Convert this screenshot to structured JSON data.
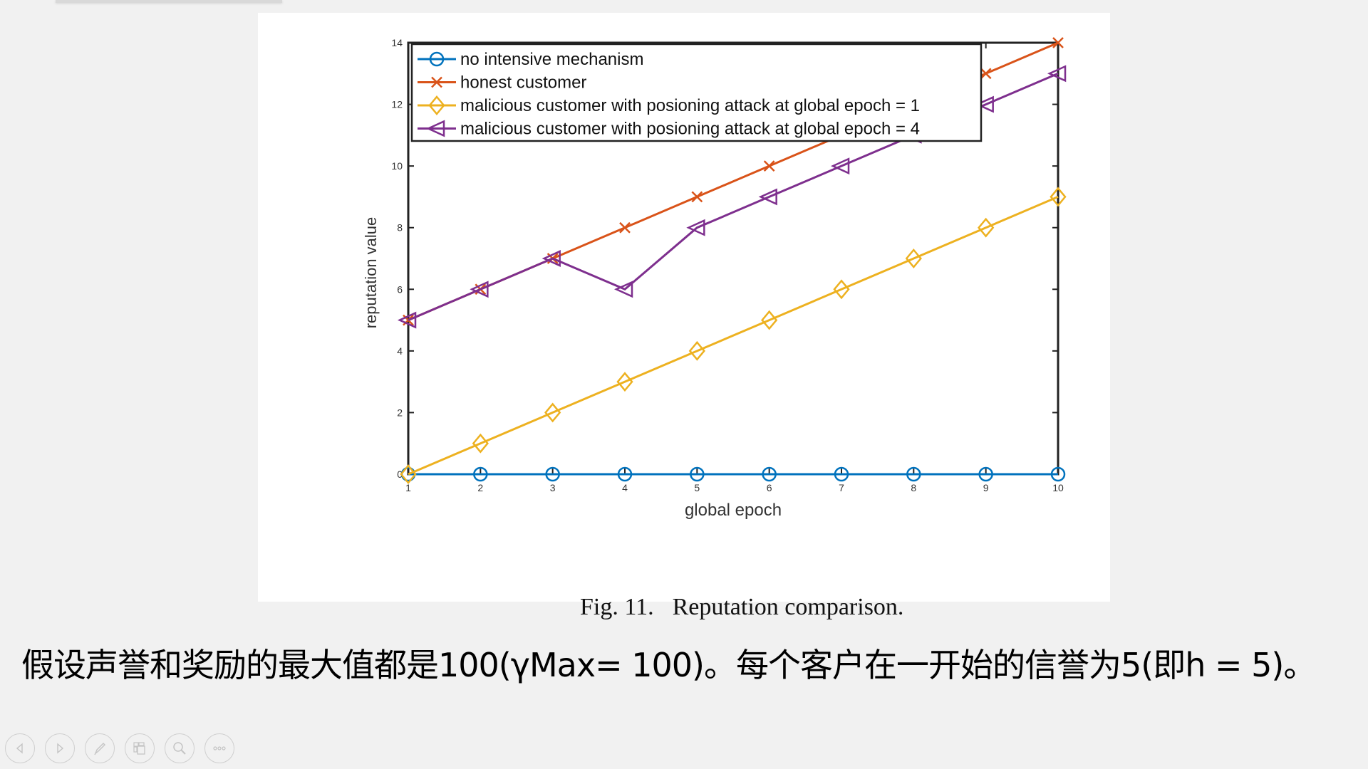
{
  "slide": {
    "body_text": "假设声誉和奖励的最大值都是100(γMax= 100)。每个客户在一开始的信誉为5(即h = 5)。"
  },
  "figure": {
    "caption_label": "Fig. 11.",
    "caption_text": "Reputation comparison."
  },
  "toolbar": {
    "buttons": [
      {
        "name": "previous-slide-button",
        "icon": "triangle-left-icon"
      },
      {
        "name": "next-slide-button",
        "icon": "triangle-right-icon"
      },
      {
        "name": "pen-tool-button",
        "icon": "pen-icon"
      },
      {
        "name": "slide-overview-button",
        "icon": "slides-grid-icon"
      },
      {
        "name": "zoom-button",
        "icon": "magnifier-icon"
      },
      {
        "name": "more-options-button",
        "icon": "ellipsis-icon"
      }
    ]
  },
  "chart_data": {
    "type": "line",
    "title": "",
    "xlabel": "global epoch",
    "ylabel": "reputation value",
    "x": [
      1,
      2,
      3,
      4,
      5,
      6,
      7,
      8,
      9,
      10
    ],
    "xlim": [
      1,
      10
    ],
    "ylim": [
      0,
      14
    ],
    "xticks": [
      "1",
      "2",
      "3",
      "4",
      "5",
      "6",
      "7",
      "8",
      "9",
      "10"
    ],
    "yticks": [
      "0",
      "2",
      "4",
      "6",
      "8",
      "10",
      "12",
      "14"
    ],
    "grid": false,
    "legend_position": "upper left (inside)",
    "series": [
      {
        "name": "no intensive mechanism",
        "color": "#0072BD",
        "marker": "circle",
        "values": [
          0,
          0,
          0,
          0,
          0,
          0,
          0,
          0,
          0,
          0
        ]
      },
      {
        "name": "honest customer",
        "color": "#D95319",
        "marker": "x",
        "values": [
          5,
          6,
          7,
          8,
          9,
          10,
          11,
          12,
          13,
          14
        ]
      },
      {
        "name": "malicious customer with posioning attack at global epoch = 1",
        "color": "#EDB120",
        "marker": "diamond",
        "values": [
          0,
          1,
          2,
          3,
          4,
          5,
          6,
          7,
          8,
          9
        ]
      },
      {
        "name": "malicious customer with posioning attack at global epoch = 4",
        "color": "#7E2F8E",
        "marker": "triangle-left",
        "values": [
          5,
          6,
          7,
          6,
          8,
          9,
          10,
          11,
          12,
          13
        ]
      }
    ]
  }
}
